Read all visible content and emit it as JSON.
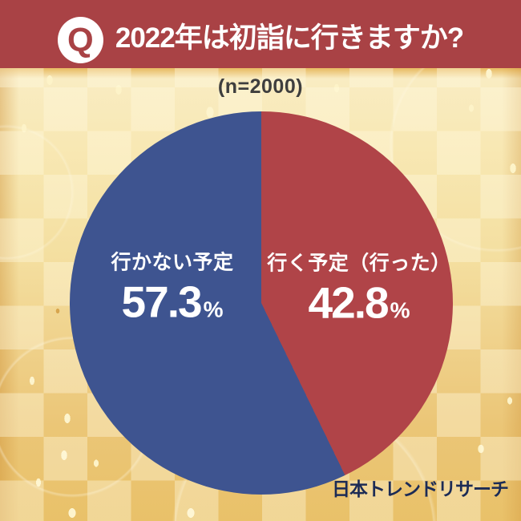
{
  "header": {
    "badge_letter": "Q",
    "title": "2022年は初詣に行きますか?"
  },
  "chart_data": {
    "type": "pie",
    "title": "2022年は初詣に行きますか?",
    "sample_size_label": "(n=2000)",
    "n": 2000,
    "start_angle_deg": 0,
    "direction": "clockwise",
    "legend_position": "inside-slices",
    "slices": [
      {
        "label": "行く予定（行った）",
        "value": 42.8,
        "display_value": "42.8",
        "unit": "%",
        "color": "#b04448",
        "side": "right"
      },
      {
        "label": "行かない予定",
        "value": 57.3,
        "display_value": "57.3",
        "unit": "%",
        "color": "#3e5490",
        "side": "left"
      }
    ]
  },
  "footer": {
    "brand": "日本トレンドリサーチ"
  },
  "colors": {
    "header_bar": "#a94245",
    "header_text": "#ffffff",
    "badge_background": "#ffffff",
    "badge_letter": "#a94245",
    "slice_yes": "#b04448",
    "slice_no": "#3e5490",
    "slice_text": "#ffffff",
    "sample_size_text": "#3e3e3e",
    "brand_text": "#1c2b55",
    "background_gold": "#f0d189"
  }
}
